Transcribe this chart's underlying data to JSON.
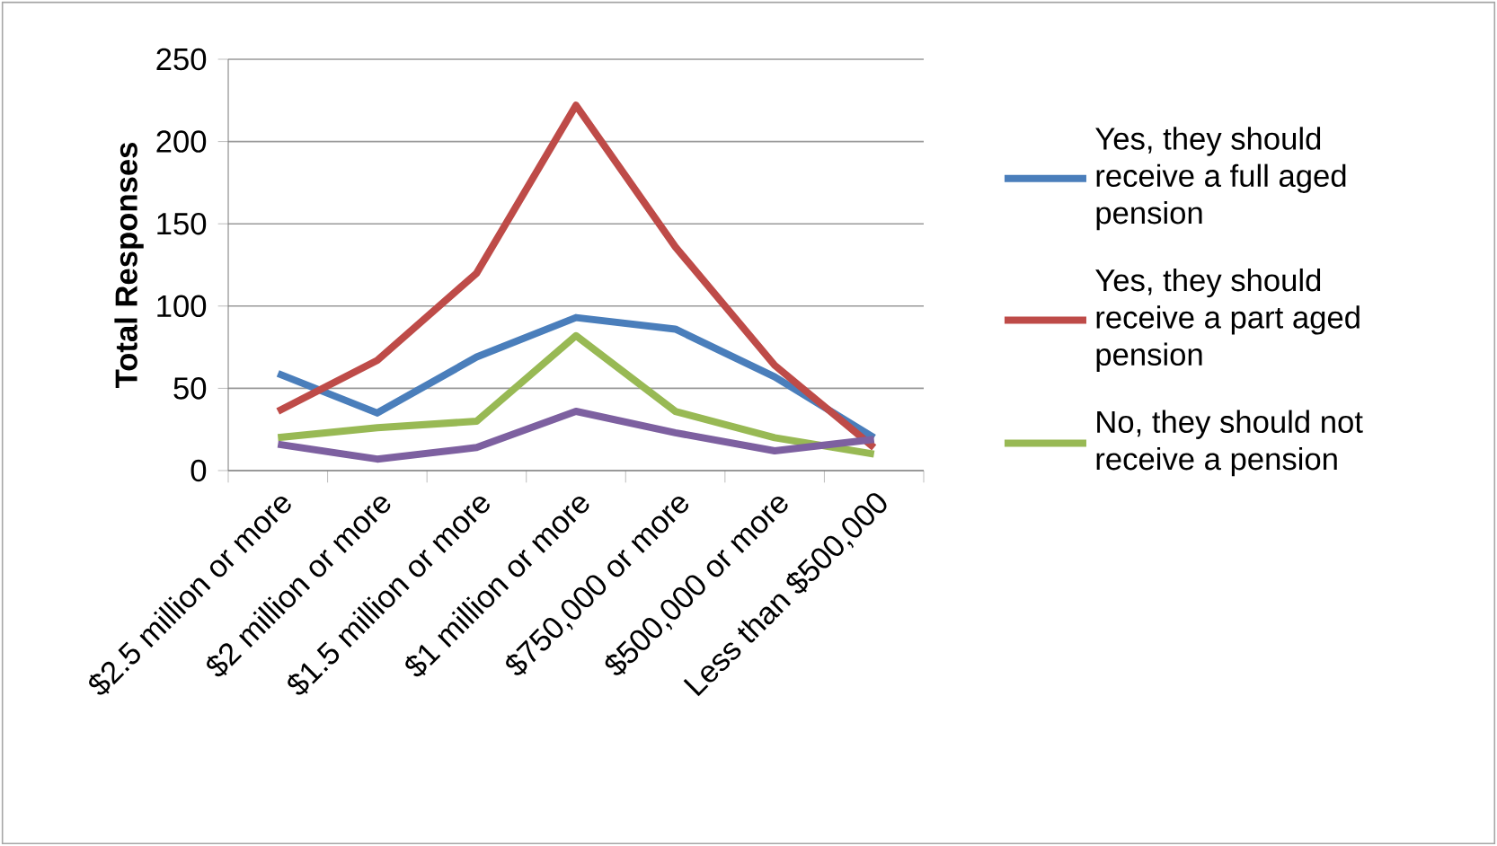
{
  "chart_data": {
    "type": "line",
    "ylabel": "Total Responses",
    "categories": [
      "$2.5 million or more",
      "$2 million or more",
      "$1.5 million or more",
      "$1 million or more",
      "$750,000 or more",
      "$500,000 or more",
      "Less than $500,000"
    ],
    "series": [
      {
        "name": "Yes, they should receive a full aged pension",
        "color": "#4a7ebb",
        "values": [
          59,
          35,
          69,
          93,
          86,
          57,
          20
        ]
      },
      {
        "name": "Yes, they should receive a part aged pension",
        "color": "#be4b48",
        "values": [
          36,
          67,
          120,
          222,
          136,
          64,
          14
        ]
      },
      {
        "name": "No, they should not receive a pension",
        "color": "#98b954",
        "values": [
          20,
          26,
          30,
          82,
          36,
          20,
          10
        ]
      },
      {
        "color": "#7d60a0",
        "values": [
          16,
          7,
          14,
          36,
          23,
          12,
          19
        ]
      }
    ],
    "ylim": [
      0,
      250
    ],
    "yticks": [
      0,
      50,
      100,
      150,
      200,
      250
    ],
    "grid": "y",
    "legend": "right",
    "marker": "none",
    "line_style": "solid"
  }
}
